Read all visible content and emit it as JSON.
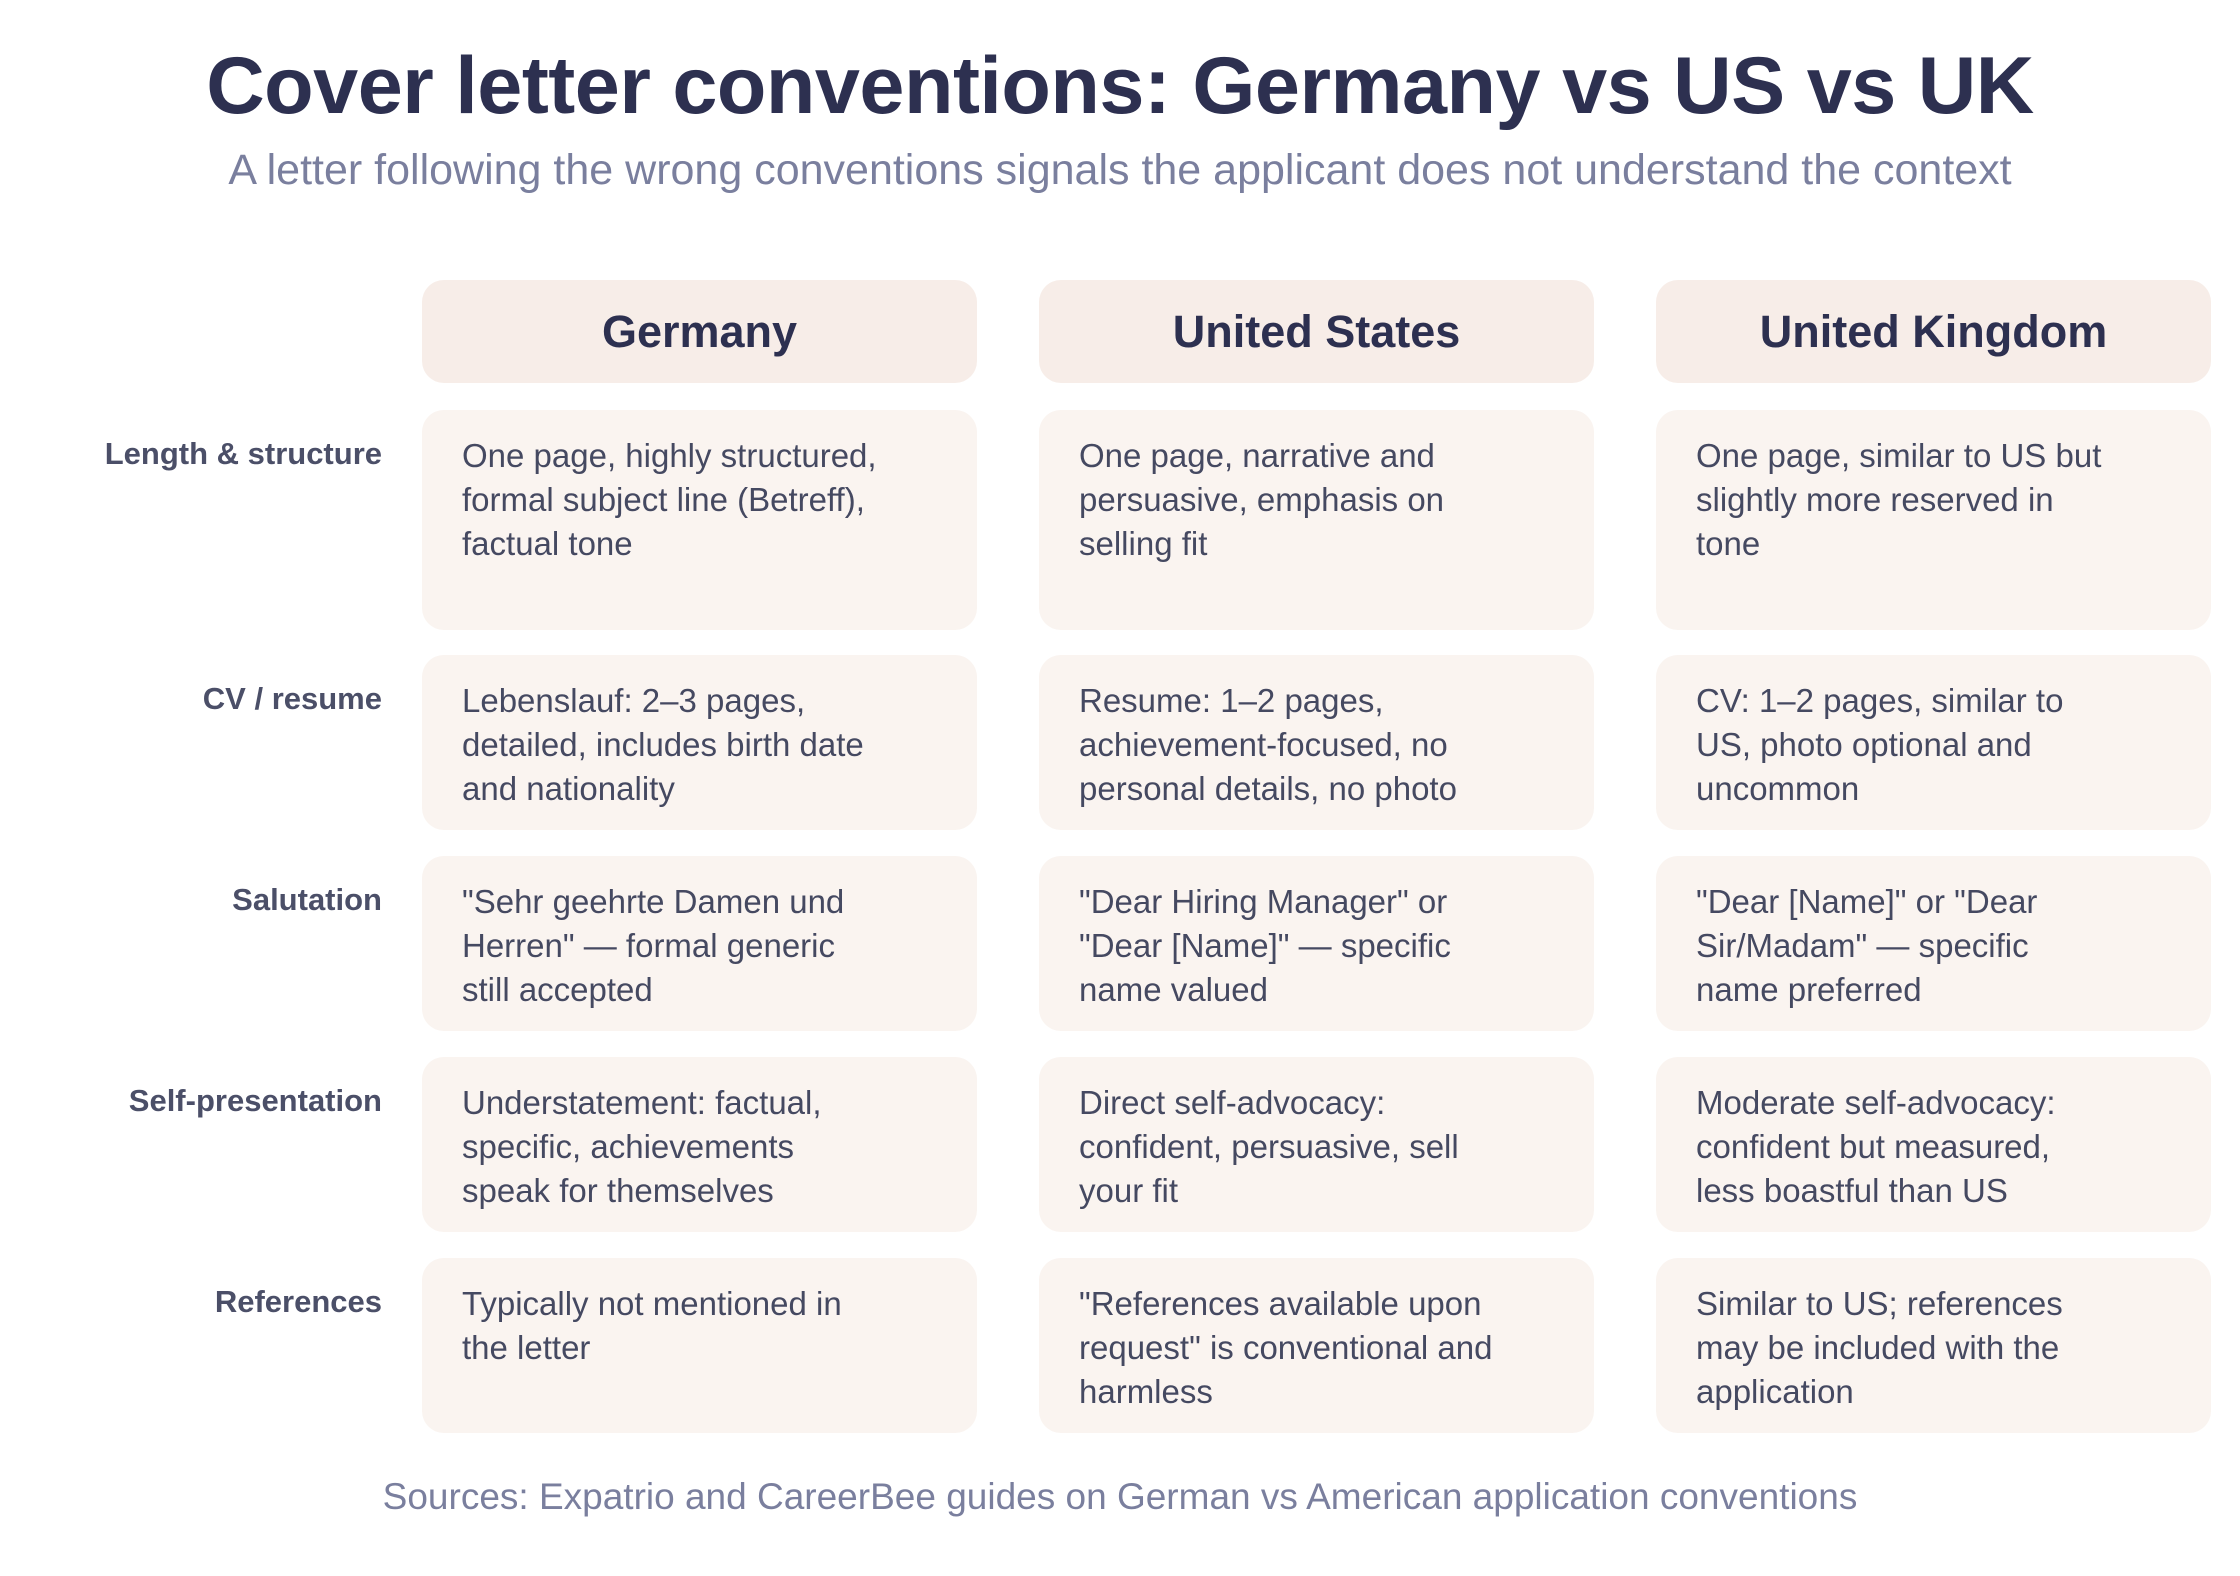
{
  "title": "Cover letter conventions: Germany vs US vs UK",
  "subtitle": "A letter following the wrong conventions signals the applicant does not understand the context",
  "columns": [
    "Germany",
    "United States",
    "United Kingdom"
  ],
  "rows": [
    {
      "label": "Length & structure",
      "cells": [
        "One page, highly structured, formal subject line (Betreff), factual tone",
        "One page, narrative and persuasive, emphasis on selling fit",
        "One page, similar to US but slightly more reserved in tone"
      ]
    },
    {
      "label": "CV / resume",
      "cells": [
        "Lebenslauf: 2–3 pages, detailed, includes birth date and nationality",
        "Resume: 1–2 pages, achievement-focused, no personal details, no photo",
        "CV: 1–2 pages, similar to US, photo optional and uncommon"
      ]
    },
    {
      "label": "Salutation",
      "cells": [
        "\"Sehr geehrte Damen und Herren\" — formal generic still accepted",
        "\"Dear Hiring Manager\" or \"Dear [Name]\" — specific name valued",
        "\"Dear [Name]\" or \"Dear Sir/Madam\" — specific name preferred"
      ]
    },
    {
      "label": "Self-presentation",
      "cells": [
        "Understatement: factual, specific, achievements speak for themselves",
        "Direct self-advocacy: confident, persuasive, sell your fit",
        "Moderate self-advocacy: confident but measured, less boastful than US"
      ]
    },
    {
      "label": "References",
      "cells": [
        "Typically not mentioned in the letter",
        "\"References available upon request\" is conventional and harmless",
        "Similar to US; references may be included with the application"
      ]
    }
  ],
  "footer": "Sources: Expatrio and CareerBee guides on German vs American application conventions"
}
